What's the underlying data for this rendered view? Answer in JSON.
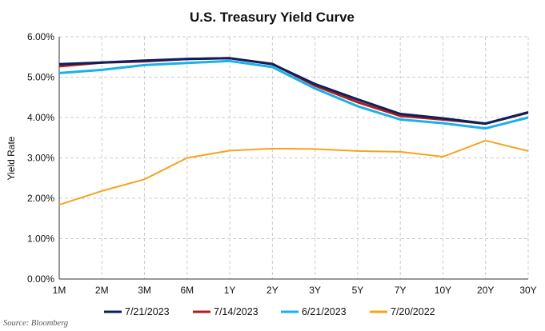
{
  "chart_data": {
    "type": "line",
    "title": "U.S. Treasury Yield Curve",
    "xlabel": "",
    "ylabel": "Yield Rate",
    "categories": [
      "1M",
      "2M",
      "3M",
      "6M",
      "1Y",
      "2Y",
      "3Y",
      "5Y",
      "7Y",
      "10Y",
      "20Y",
      "30Y"
    ],
    "ylim": [
      0,
      6
    ],
    "yticks": [
      "0.00%",
      "1.00%",
      "2.00%",
      "3.00%",
      "4.00%",
      "5.00%",
      "6.00%"
    ],
    "grid": true,
    "legend_position": "bottom",
    "source": "Source: Bloomberg",
    "series": [
      {
        "name": "7/21/2023",
        "color": "#0d1f5c",
        "values": [
          5.32,
          5.36,
          5.41,
          5.45,
          5.47,
          5.32,
          4.83,
          4.45,
          4.09,
          3.98,
          3.85,
          4.13
        ]
      },
      {
        "name": "7/14/2023",
        "color": "#b01c1c",
        "values": [
          5.27,
          5.36,
          5.39,
          5.45,
          5.47,
          5.33,
          4.79,
          4.38,
          4.04,
          3.95,
          3.85,
          4.12
        ]
      },
      {
        "name": "6/21/2023",
        "color": "#1ab0e8",
        "values": [
          5.1,
          5.18,
          5.3,
          5.35,
          5.4,
          5.25,
          4.72,
          4.28,
          3.95,
          3.86,
          3.73,
          4.0
        ]
      },
      {
        "name": "7/20/2022",
        "color": "#f5a41e",
        "values": [
          1.84,
          2.18,
          2.47,
          3.0,
          3.18,
          3.23,
          3.22,
          3.17,
          3.15,
          3.03,
          3.43,
          3.17
        ]
      }
    ]
  }
}
